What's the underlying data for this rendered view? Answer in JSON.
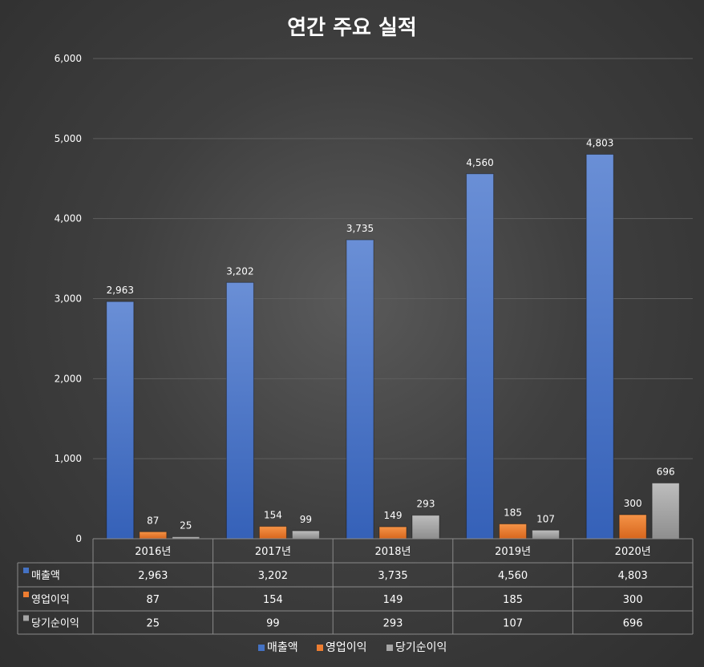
{
  "chart_data": {
    "type": "bar",
    "title": "연간 주요 실적",
    "categories": [
      "2016년",
      "2017년",
      "2018년",
      "2019년",
      "2020년"
    ],
    "series": [
      {
        "name": "매출액",
        "values": [
          2963,
          3202,
          3735,
          4560,
          4803
        ]
      },
      {
        "name": "영업이익",
        "values": [
          87,
          154,
          149,
          185,
          300
        ]
      },
      {
        "name": "당기순이익",
        "values": [
          25,
          99,
          293,
          107,
          696
        ]
      }
    ],
    "ylim": [
      0,
      6000
    ],
    "yticks": [
      0,
      1000,
      2000,
      3000,
      4000,
      5000,
      6000
    ],
    "ytick_labels": [
      "0",
      "1,000",
      "2,000",
      "3,000",
      "4,000",
      "5,000",
      "6,000"
    ],
    "value_labels": [
      [
        "2,963",
        "3,202",
        "3,735",
        "4,560",
        "4,803"
      ],
      [
        "87",
        "154",
        "149",
        "185",
        "300"
      ],
      [
        "25",
        "99",
        "293",
        "107",
        "696"
      ]
    ],
    "grid": true,
    "legend_position": "bottom",
    "has_data_table": true
  },
  "colors": {
    "series": [
      "#4472c4",
      "#ed7d31",
      "#a5a5a5"
    ],
    "text": "#ffffff",
    "grid": "#5e5e5e",
    "table_border": "#8a8a8a"
  }
}
